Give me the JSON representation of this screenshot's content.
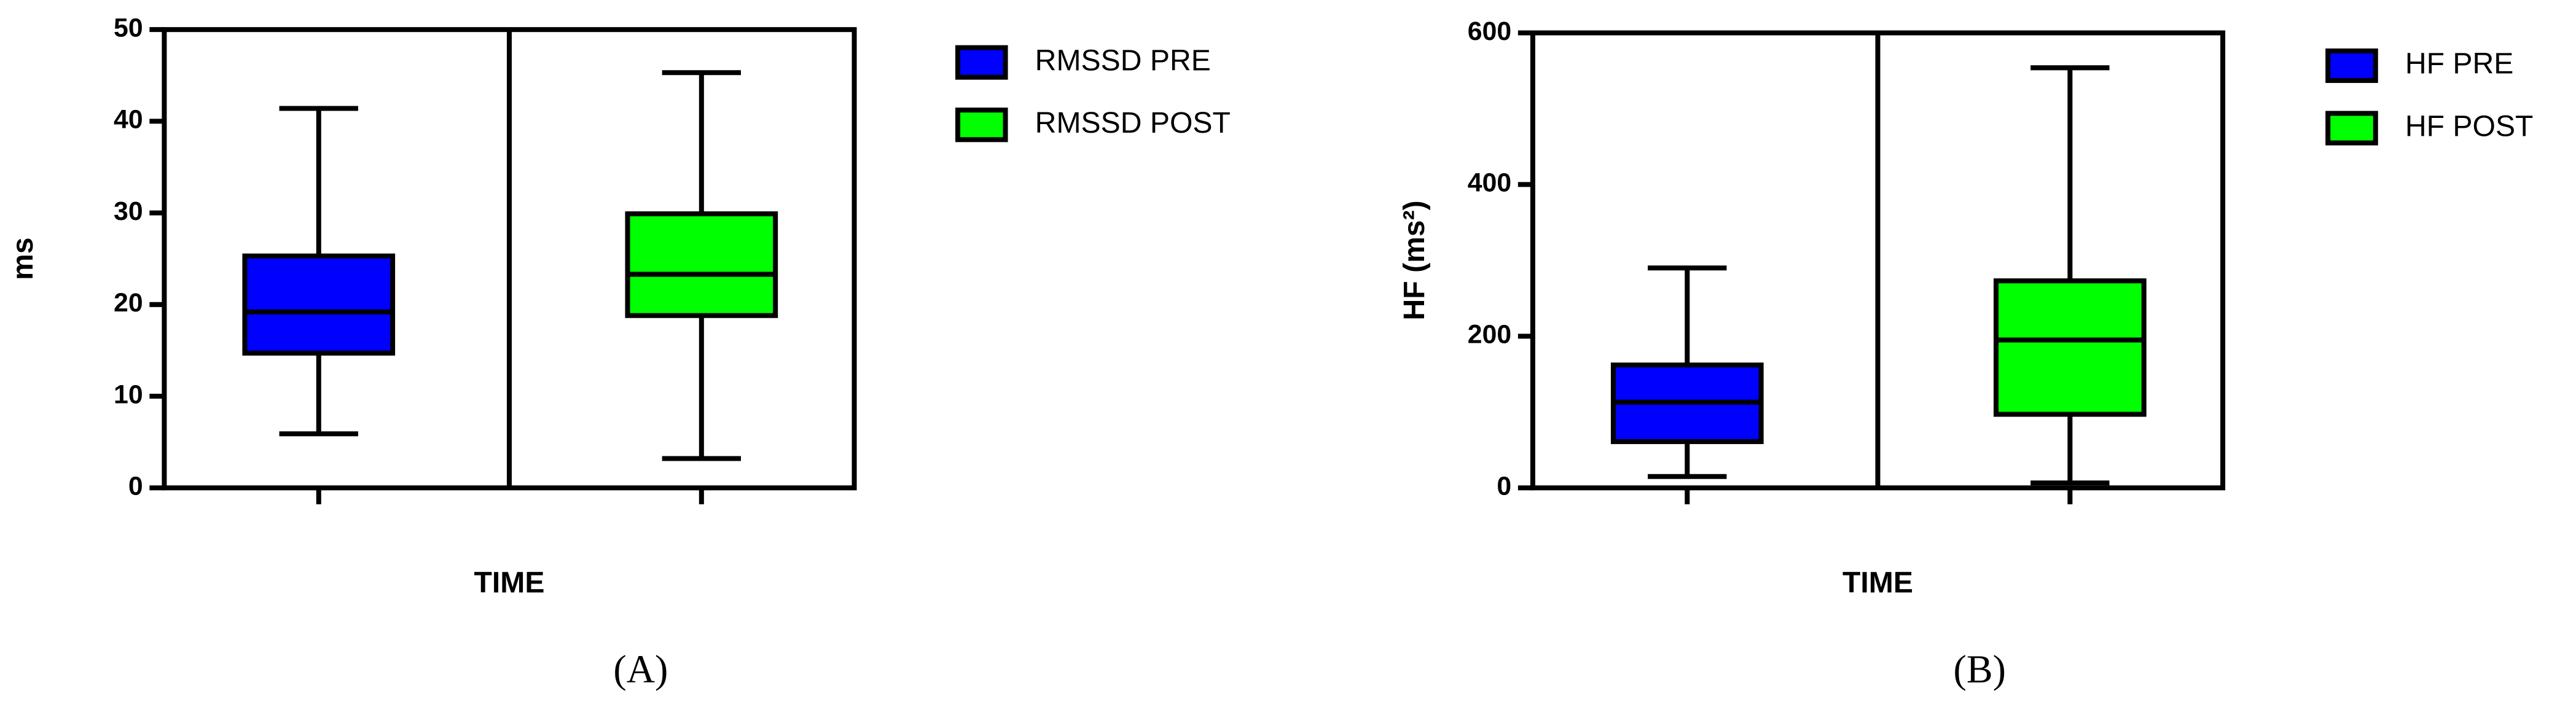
{
  "chart_data": [
    {
      "type": "box",
      "ylabel": "ms",
      "xlabel": "TIME",
      "caption": "(A)",
      "ylim": [
        0,
        50
      ],
      "yticks": [
        0,
        10,
        20,
        30,
        40,
        50
      ],
      "series": [
        {
          "name": "RMSSD PRE",
          "color": "#0000ff",
          "min": 5.9,
          "q1": 14.7,
          "median": 19.2,
          "q3": 25.3,
          "max": 41.4
        },
        {
          "name": "RMSSD POST",
          "color": "#00ff00",
          "min": 3.2,
          "q1": 18.8,
          "median": 23.3,
          "q3": 29.9,
          "max": 45.3
        }
      ]
    },
    {
      "type": "box",
      "ylabel": "HF (ms²)",
      "xlabel": "TIME",
      "caption": "(B)",
      "ylim": [
        0,
        600
      ],
      "yticks": [
        0,
        200,
        400,
        600
      ],
      "series": [
        {
          "name": "HF PRE",
          "color": "#0000ff",
          "min": 15,
          "q1": 61,
          "median": 113,
          "q3": 162,
          "max": 290
        },
        {
          "name": "HF POST",
          "color": "#00ff00",
          "min": 6.5,
          "q1": 97,
          "median": 195,
          "q3": 273,
          "max": 554
        }
      ]
    }
  ]
}
